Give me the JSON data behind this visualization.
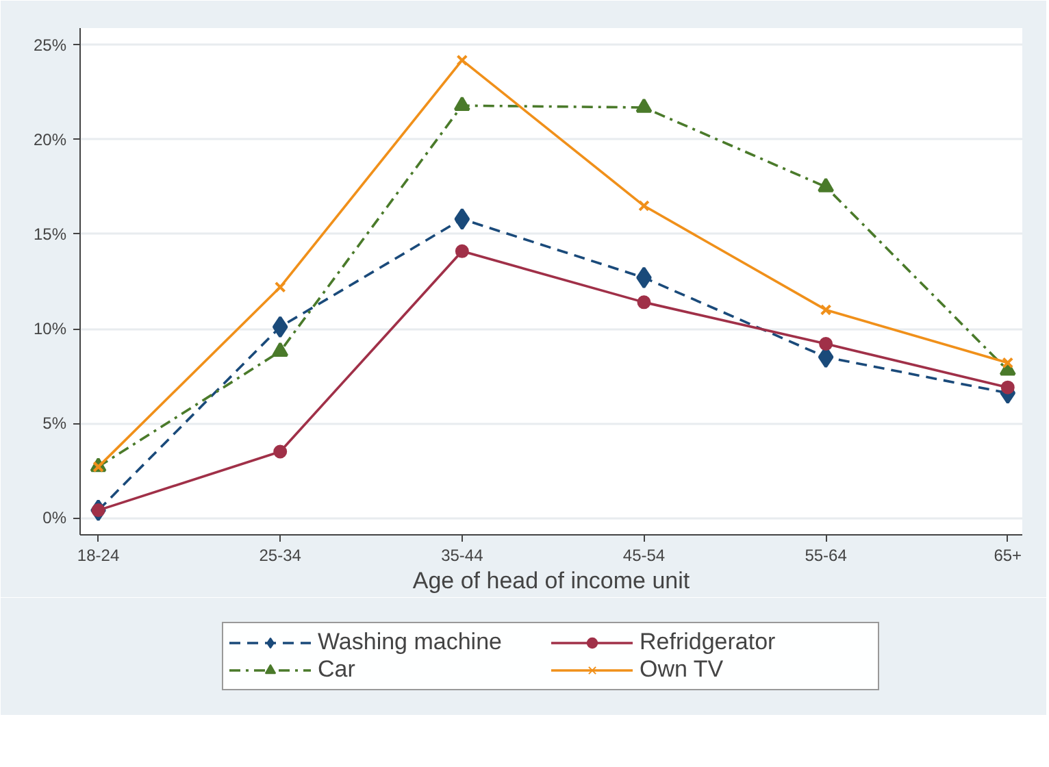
{
  "chart_data": {
    "type": "line",
    "xlabel": "Age of head of income unit",
    "categories": [
      "18-24",
      "25-34",
      "35-44",
      "45-54",
      "55-64",
      "65+"
    ],
    "series": [
      {
        "name": "Washing machine",
        "color": "#1a4a7a",
        "marker": "diamond",
        "line_style": "dashed",
        "values": [
          0.4,
          10.1,
          15.8,
          12.7,
          8.5,
          6.6
        ]
      },
      {
        "name": "Refridgerator",
        "color": "#a03048",
        "marker": "circle",
        "line_style": "solid",
        "values": [
          0.4,
          3.5,
          14.1,
          11.4,
          9.2,
          6.9
        ]
      },
      {
        "name": "Car",
        "color": "#4a7a2a",
        "marker": "triangle",
        "line_style": "dashdot",
        "values": [
          2.7,
          8.8,
          21.8,
          21.7,
          17.5,
          7.8
        ]
      },
      {
        "name": "Own TV",
        "color": "#f0901a",
        "marker": "x",
        "line_style": "solid",
        "values": [
          2.7,
          12.2,
          24.2,
          16.5,
          11.0,
          8.2
        ]
      }
    ],
    "ylim": [
      -0.9,
      25.9
    ],
    "yticks": [
      {
        "value": 0,
        "label": "0%"
      },
      {
        "value": 5,
        "label": "5%"
      },
      {
        "value": 10,
        "label": "10%"
      },
      {
        "value": 15,
        "label": "15%"
      },
      {
        "value": 20,
        "label": "20%"
      },
      {
        "value": 25,
        "label": "25%"
      }
    ],
    "grid": "y",
    "legend": "bottom"
  }
}
